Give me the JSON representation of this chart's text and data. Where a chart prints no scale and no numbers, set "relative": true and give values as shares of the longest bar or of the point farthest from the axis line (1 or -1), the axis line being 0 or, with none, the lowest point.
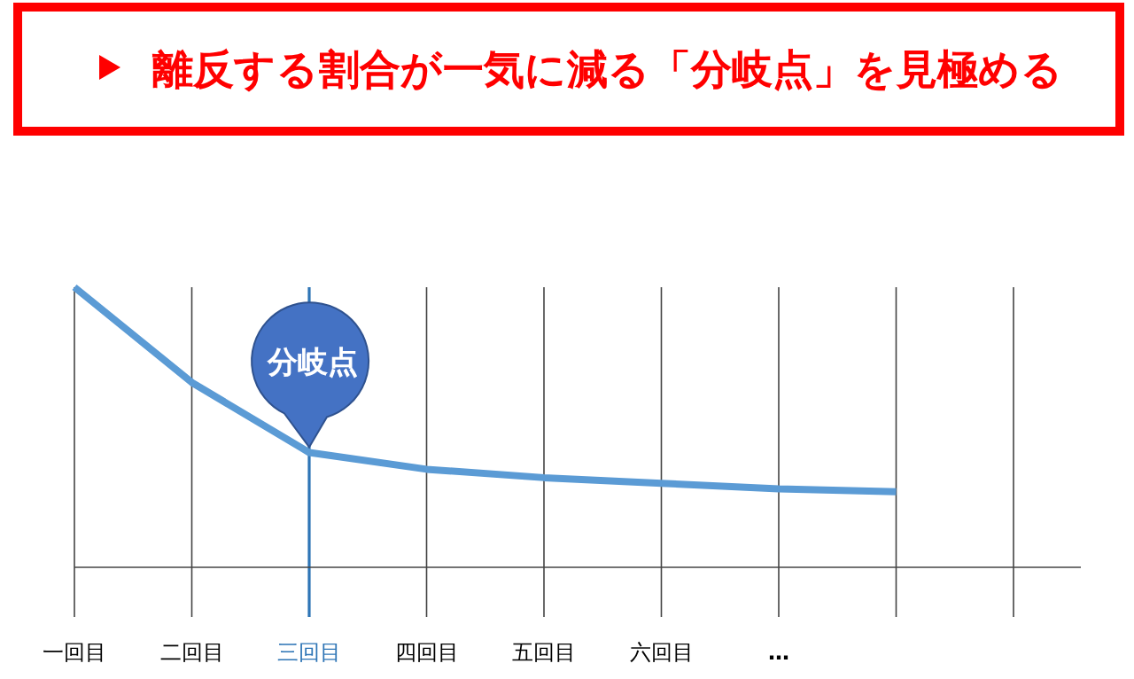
{
  "chart_data": {
    "type": "line",
    "title": "離反する割合が一気に減る「分岐点」を見極める",
    "relative": true,
    "grid": "x",
    "marker": "none",
    "categories": [
      "一回目",
      "二回目",
      "三回目",
      "四回目",
      "五回目",
      "六回目",
      "…",
      null,
      null
    ],
    "series": [
      {
        "color": "#5b9bd5",
        "values": [
          1,
          0.66,
          0.41,
          0.35,
          0.32,
          0.3,
          0.28,
          0.27,
          null
        ]
      }
    ],
    "ref_lines": [
      {
        "axis": "x",
        "value": "三回目",
        "color": "#2e75b6"
      }
    ],
    "annotations": [
      {
        "text": "分岐点",
        "x": "三回目",
        "y": 0.41
      }
    ]
  }
}
